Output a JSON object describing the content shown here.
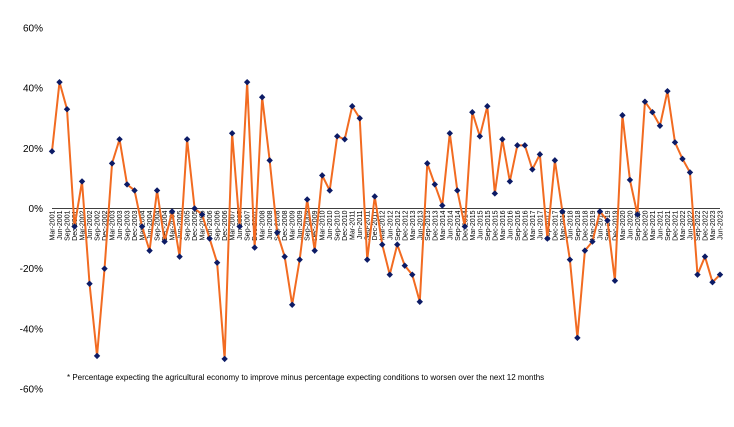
{
  "chart_data": {
    "type": "line",
    "title": "",
    "xlabel": "",
    "ylabel": "",
    "ylim": [
      -0.6,
      0.6
    ],
    "y_ticks": [
      "60%",
      "40%",
      "20%",
      "0%",
      "-20%",
      "-40%",
      "-60%"
    ],
    "y_tick_values": [
      0.6,
      0.4,
      0.2,
      0.0,
      -0.2,
      -0.4,
      -0.6
    ],
    "grid": false,
    "legend": "none",
    "x": [
      "Mar-2001",
      "Jun-2001",
      "Sep-2001",
      "Dec-2001",
      "Mar-2002",
      "Jun-2002",
      "Sep-2002",
      "Dec-2002",
      "Mar-2003",
      "Jun-2003",
      "Sep-2003",
      "Dec-2003",
      "Mar-2004",
      "Jun-2004",
      "Sep-2004",
      "Dec-2004",
      "Mar-2005",
      "Jun-2005",
      "Sep-2005",
      "Dec-2005",
      "Mar-2006",
      "Jun-2006",
      "Sep-2006",
      "Dec-2006",
      "Mar-2007",
      "Jun-2007",
      "Sep-2007",
      "Dec-2007",
      "Mar-2008",
      "Jun-2008",
      "Sep-2008",
      "Dec-2008",
      "Mar-2009",
      "Jun-2009",
      "Sep-2009",
      "Dec-2009",
      "Mar-2010",
      "Jun-2010",
      "Sep-2010",
      "Dec-2010",
      "Mar-2011",
      "Jun-2011",
      "Sep-2011",
      "Dec-2011",
      "Mar-2012",
      "Jun-2012",
      "Sep-2012",
      "Dec-2012",
      "Mar-2013",
      "Jun-2013",
      "Sep-2013",
      "Dec-2013",
      "Mar-2014",
      "Jun-2014",
      "Sep-2014",
      "Dec-2014",
      "Mar-2015",
      "Jun-2015",
      "Sep-2015",
      "Dec-2015",
      "Mar-2016",
      "Jun-2016",
      "Sep-2016",
      "Dec-2016",
      "Mar-2017",
      "Jun-2017",
      "Sep-2017",
      "Dec-2017",
      "Mar-2018",
      "Jun-2018",
      "Sep-2018",
      "Dec-2018",
      "Mar-2019",
      "Jun-2019",
      "Sep-2019",
      "Dec-2019",
      "Mar-2020",
      "Jun-2020",
      "Sep-2020",
      "Dec-2020",
      "Mar-2021",
      "Jun-2021",
      "Sep-2021",
      "Dec-2021",
      "Mar-2022",
      "Jun-2022",
      "Sep-2022",
      "Dec-2022",
      "Mar-2023",
      "Jun-2023"
    ],
    "series": [
      {
        "values": [
          0.19,
          0.42,
          0.33,
          -0.06,
          0.09,
          -0.25,
          -0.49,
          -0.2,
          0.15,
          0.23,
          0.08,
          0.06,
          -0.06,
          -0.14,
          0.06,
          -0.11,
          -0.01,
          -0.16,
          0.23,
          0.0,
          -0.02,
          -0.1,
          -0.18,
          -0.5,
          0.25,
          -0.06,
          0.42,
          -0.13,
          0.37,
          0.16,
          -0.08,
          -0.16,
          -0.32,
          -0.17,
          0.03,
          -0.14,
          0.11,
          0.06,
          0.24,
          0.23,
          0.34,
          0.3,
          -0.17,
          0.04,
          -0.12,
          -0.22,
          -0.12,
          -0.19,
          -0.22,
          -0.31,
          0.15,
          0.08,
          0.01,
          0.25,
          0.06,
          -0.06,
          0.32,
          0.24,
          0.34,
          0.05,
          0.23,
          0.09,
          0.21,
          0.21,
          0.13,
          0.18,
          -0.1,
          0.16,
          -0.01,
          -0.17,
          -0.43,
          -0.14,
          -0.11,
          -0.01,
          -0.04,
          -0.24,
          0.31,
          0.095,
          -0.02,
          0.355,
          0.32,
          0.275,
          0.39,
          0.22,
          0.165,
          0.12,
          -0.22,
          -0.16,
          -0.245,
          -0.22
        ]
      }
    ],
    "line_color": "#F26B21",
    "marker_color": "#0C1B66"
  },
  "footnote": "* Percentage  expecting  the  agricultural  economy  to improve  minus  percentage  expecting  conditions  to worsen  over  the  next  12  months"
}
